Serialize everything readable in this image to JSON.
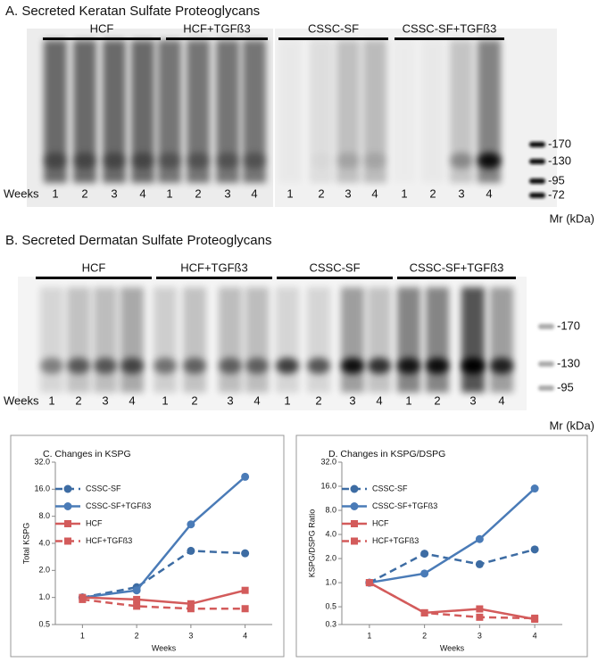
{
  "panel_a": {
    "title": "A.  Secreted Keratan Sulfate Proteoglycans",
    "groups": [
      "HCF",
      "HCF+TGFß3",
      "CSSC-SF",
      "CSSC-SF+TGFß3"
    ],
    "row_label": "Weeks",
    "lanes": [
      "1",
      "2",
      "3",
      "4",
      "1",
      "2",
      "3",
      "4",
      "1",
      "2",
      "3",
      "4",
      "1",
      "2",
      "3",
      "4"
    ],
    "markers": [
      "-170",
      "-130",
      "-95",
      "-72"
    ],
    "marker_unit": "Mr (kDa)"
  },
  "panel_b": {
    "title": "B.  Secreted Dermatan Sulfate Proteoglycans",
    "groups": [
      "HCF",
      "HCF+TGFß3",
      "CSSC-SF",
      "CSSC-SF+TGFß3"
    ],
    "row_label": "Weeks",
    "lanes": [
      "1",
      "2",
      "3",
      "4",
      "1",
      "2",
      "3",
      "4",
      "1",
      "2",
      "3",
      "4",
      "1",
      "2",
      "3",
      "4"
    ],
    "markers": [
      "-170",
      "-130",
      "-95"
    ],
    "marker_unit": "Mr (kDa)"
  },
  "charts": [
    {
      "type": "line",
      "title": "C.  Changes in KSPG",
      "ylabel": "Total  KSPG",
      "xlabel": "Weeks",
      "log_y": true,
      "legend": "upper left",
      "x": [
        1,
        2,
        3,
        4
      ],
      "xlim": [
        0.5,
        4.5
      ],
      "xticks": [
        1,
        2,
        3,
        4
      ],
      "ylim": [
        0.5,
        32
      ],
      "yticks": [
        0.5,
        {
          "value": 1,
          "label": "1.0"
        },
        {
          "value": 2,
          "label": "2.0"
        },
        {
          "value": 4,
          "label": "4.0"
        },
        {
          "value": 8,
          "label": "8.0"
        },
        {
          "value": 16,
          "label": "16.0"
        },
        {
          "value": 32,
          "label": "32.0"
        }
      ],
      "series": [
        {
          "name": "CSSC-SF",
          "color": "#3d6ca3",
          "dashed": true,
          "marker": "circle",
          "values": [
            1,
            1.3,
            3.3,
            3.1
          ]
        },
        {
          "name": "CSSC-SF+TGFß3",
          "color": "#4a7bb7",
          "dashed": false,
          "marker": "circle",
          "values": [
            1,
            1.2,
            6.5,
            22
          ]
        },
        {
          "name": "HCF",
          "color": "#d35b5b",
          "dashed": false,
          "marker": "square",
          "values": [
            1,
            0.95,
            0.85,
            1.2
          ]
        },
        {
          "name": "HCF+TGFß3",
          "color": "#d35b5b",
          "dashed": true,
          "marker": "square",
          "values": [
            0.95,
            0.8,
            0.75,
            0.75
          ]
        }
      ]
    },
    {
      "type": "line",
      "title": "D.  Changes in KSPG/DSPG",
      "ylabel": "KSPG/DSPG Ratio",
      "xlabel": "Weeks",
      "log_y": true,
      "legend": "upper left",
      "x": [
        1,
        2,
        3,
        4
      ],
      "xlim": [
        0.5,
        4.5
      ],
      "xticks": [
        1,
        2,
        3,
        4
      ],
      "ylim": [
        0.3,
        32
      ],
      "yticks": [
        0.3,
        0.5,
        {
          "value": 1,
          "label": "1.0"
        },
        {
          "value": 2,
          "label": "2.0"
        },
        {
          "value": 4,
          "label": "4.0"
        },
        {
          "value": 8,
          "label": "8.0"
        },
        {
          "value": 16,
          "label": "16.0"
        },
        {
          "value": 32,
          "label": "32.0"
        }
      ],
      "series": [
        {
          "name": "CSSC-SF",
          "color": "#3d6ca3",
          "dashed": true,
          "marker": "circle",
          "values": [
            1,
            2.3,
            1.7,
            2.6
          ]
        },
        {
          "name": "CSSC-SF+TGFß3",
          "color": "#4a7bb7",
          "dashed": false,
          "marker": "circle",
          "values": [
            1,
            1.3,
            3.5,
            15
          ]
        },
        {
          "name": "HCF",
          "color": "#d35b5b",
          "dashed": false,
          "marker": "square",
          "values": [
            1,
            0.42,
            0.47,
            0.35
          ]
        },
        {
          "name": "HCF+TGFß3",
          "color": "#d35b5b",
          "dashed": true,
          "marker": "square",
          "values": [
            1,
            0.42,
            0.37,
            0.36
          ]
        }
      ]
    }
  ]
}
